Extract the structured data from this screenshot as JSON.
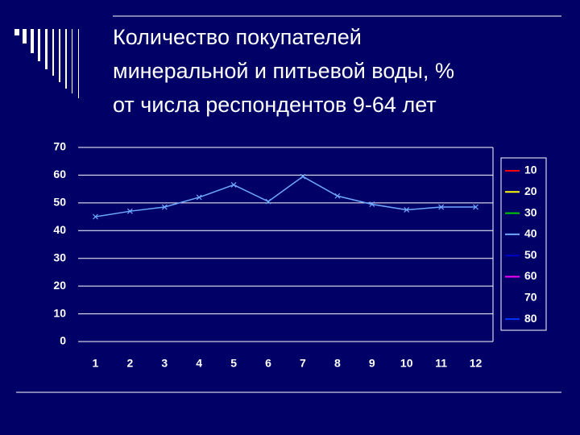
{
  "chart_data": {
    "type": "line",
    "title": [
      "Количество покупателей",
      "минеральной и питьевой воды, %",
      "от числа респондентов 9-64 лет"
    ],
    "categories": [
      "1",
      "2",
      "3",
      "4",
      "5",
      "6",
      "7",
      "8",
      "9",
      "10",
      "11",
      "12"
    ],
    "ylim": [
      0,
      70
    ],
    "yticks": [
      0,
      10,
      20,
      30,
      40,
      50,
      60,
      70
    ],
    "grid": true,
    "legend": "right",
    "series": [
      {
        "name": "10",
        "color": "#ff0000",
        "values": [
          null,
          null,
          null,
          null,
          null,
          null,
          null,
          null,
          null,
          null,
          null,
          null
        ]
      },
      {
        "name": "20",
        "color": "#ffff00",
        "values": [
          null,
          null,
          null,
          null,
          null,
          null,
          null,
          null,
          null,
          null,
          null,
          null
        ]
      },
      {
        "name": "30",
        "color": "#00cc00",
        "values": [
          null,
          null,
          null,
          null,
          null,
          null,
          null,
          null,
          null,
          null,
          null,
          null
        ]
      },
      {
        "name": "40",
        "color": "#6fa8ff",
        "values": [
          45,
          47,
          48.5,
          52,
          56.5,
          50.5,
          59.5,
          52.5,
          49.5,
          47.5,
          48.5,
          48.5
        ]
      },
      {
        "name": "50",
        "color": "#0000cc",
        "values": [
          null,
          null,
          null,
          null,
          null,
          null,
          null,
          null,
          null,
          null,
          null,
          null
        ]
      },
      {
        "name": "60",
        "color": "#ff00ff",
        "values": [
          null,
          null,
          null,
          null,
          null,
          null,
          null,
          null,
          null,
          null,
          null,
          null
        ]
      },
      {
        "name": "70",
        "color": "#000066",
        "values": [
          null,
          null,
          null,
          null,
          null,
          null,
          null,
          null,
          null,
          null,
          null,
          null
        ]
      },
      {
        "name": "80",
        "color": "#0033ff",
        "values": [
          null,
          null,
          null,
          null,
          null,
          null,
          null,
          null,
          null,
          null,
          null,
          null
        ]
      }
    ]
  }
}
